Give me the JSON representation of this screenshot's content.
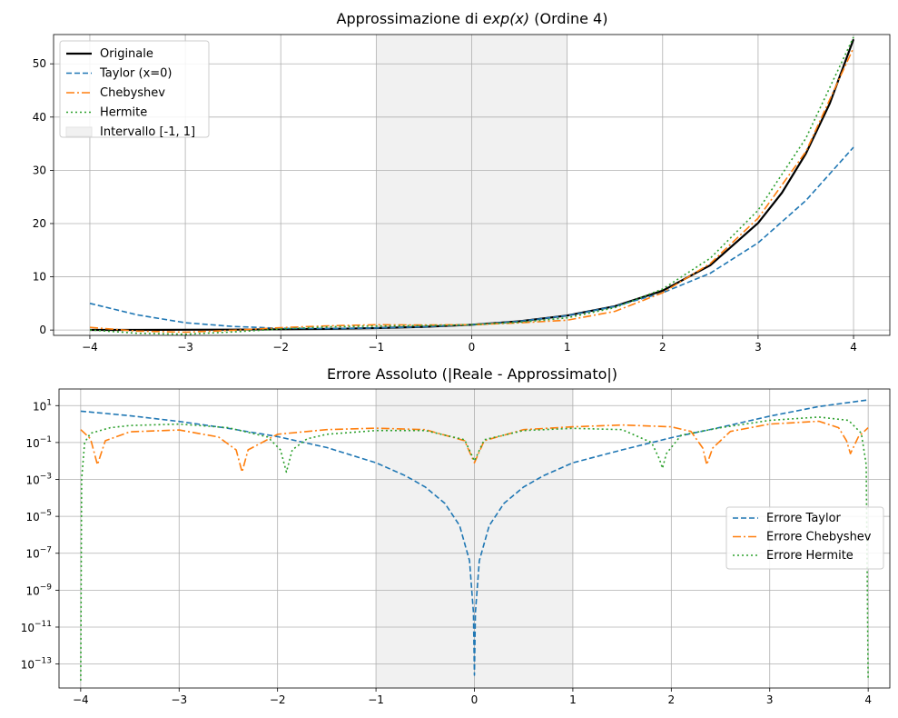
{
  "chart_data": [
    {
      "type": "line",
      "title_prefix": "Approssimazione di ",
      "title_math": "exp(x)",
      "title_suffix": " (Ordine 4)",
      "xlim": [
        -4.38,
        4.38
      ],
      "ylim": [
        -1.0,
        55.5
      ],
      "xticks": [
        -4,
        -3,
        -2,
        -1,
        0,
        1,
        2,
        3,
        4
      ],
      "xtick_labels": [
        "−4",
        "−3",
        "−2",
        "−1",
        "0",
        "1",
        "2",
        "3",
        "4"
      ],
      "yticks": [
        0,
        10,
        20,
        30,
        40,
        50
      ],
      "ytick_labels": [
        "0",
        "10",
        "20",
        "30",
        "40",
        "50"
      ],
      "grid": true,
      "legend_position": "upper-left",
      "shaded_interval": [
        -1,
        1
      ],
      "series": [
        {
          "name": "Originale",
          "color": "#000000",
          "style": "solid",
          "x": [
            -4,
            -3.5,
            -3,
            -2.5,
            -2,
            -1.5,
            -1,
            -0.5,
            0,
            0.5,
            1,
            1.5,
            2,
            2.5,
            3,
            3.25,
            3.5,
            3.75,
            4
          ],
          "values": [
            0.02,
            0.03,
            0.05,
            0.08,
            0.14,
            0.22,
            0.37,
            0.61,
            1.0,
            1.65,
            2.72,
            4.48,
            7.39,
            12.18,
            20.09,
            25.79,
            33.12,
            42.52,
            54.6
          ]
        },
        {
          "name": "Taylor (x=0)",
          "color": "#1f77b4",
          "style": "dashed",
          "x": [
            -4,
            -3.5,
            -3,
            -2.5,
            -2,
            -1.5,
            -1,
            -0.5,
            0,
            0.5,
            1,
            1.5,
            2,
            2.5,
            3,
            3.5,
            4
          ],
          "values": [
            5.0,
            2.84,
            1.38,
            0.67,
            0.33,
            0.27,
            0.38,
            0.61,
            1.0,
            1.65,
            2.71,
            4.44,
            7.0,
            10.68,
            16.38,
            24.31,
            34.33
          ]
        },
        {
          "name": "Chebyshev",
          "color": "#ff7f0e",
          "style": "dashdot",
          "x": [
            -4,
            -3.5,
            -3,
            -2.5,
            -2,
            -1.5,
            -1,
            -0.5,
            0,
            0.5,
            1,
            1.5,
            2,
            2.5,
            3,
            3.5,
            4
          ],
          "values": [
            0.5,
            -0.2,
            -0.4,
            -0.05,
            0.45,
            0.8,
            1.0,
            0.95,
            1.0,
            1.35,
            1.85,
            3.5,
            7.0,
            12.5,
            21.0,
            33.5,
            53.0
          ]
        },
        {
          "name": "Hermite",
          "color": "#2ca02c",
          "style": "dotted",
          "x": [
            -4,
            -3.5,
            -3,
            -2.5,
            -2,
            -1.5,
            -1,
            -0.5,
            0,
            0.5,
            1,
            1.5,
            2,
            2.5,
            3,
            3.5,
            4
          ],
          "values": [
            0.02,
            -0.6,
            -0.8,
            -0.35,
            0.2,
            0.6,
            0.75,
            0.85,
            1.0,
            1.45,
            2.3,
            4.2,
            7.7,
            13.5,
            22.5,
            36.0,
            55.0
          ]
        }
      ],
      "interval_label": "Intervallo [-1, 1]"
    },
    {
      "type": "line",
      "title": "Errore Assoluto (|Reale - Approssimato|)",
      "y_scale": "log",
      "xlim": [
        -4.22,
        4.22
      ],
      "ylim_log10": [
        -14.3,
        1.9
      ],
      "xticks": [
        -4,
        -3,
        -2,
        -1,
        0,
        1,
        2,
        3,
        4
      ],
      "xtick_labels": [
        "−4",
        "−3",
        "−2",
        "−1",
        "0",
        "1",
        "2",
        "3",
        "4"
      ],
      "ytick_exponents": [
        1,
        -1,
        -3,
        -5,
        -7,
        -9,
        -11,
        -13
      ],
      "ytick_base": "10",
      "ytick_exps_text": [
        "1",
        "−1",
        "−3",
        "−5",
        "−7",
        "−9",
        "−11",
        "−13"
      ],
      "grid": true,
      "legend_position": "center-right",
      "shaded_interval": [
        -1,
        1
      ],
      "series": [
        {
          "name": "Errore Taylor",
          "color": "#1f77b4",
          "style": "dashed",
          "x": [
            -4,
            -3.5,
            -3,
            -2.5,
            -2,
            -1.5,
            -1,
            -0.7,
            -0.5,
            -0.3,
            -0.15,
            -0.05,
            -0.01,
            0,
            0.01,
            0.05,
            0.15,
            0.3,
            0.5,
            0.7,
            1,
            1.5,
            2,
            2.5,
            3,
            3.5,
            4
          ],
          "log10_values": [
            0.7,
            0.45,
            0.14,
            -0.23,
            -0.68,
            -1.27,
            -2.1,
            -2.8,
            -3.41,
            -4.3,
            -5.5,
            -7.4,
            -10.2,
            -13.6,
            -10.2,
            -7.4,
            -5.5,
            -4.3,
            -3.41,
            -2.8,
            -2.1,
            -1.4,
            -0.74,
            -0.18,
            0.43,
            0.95,
            1.31
          ]
        },
        {
          "name": "Errore Chebyshev",
          "color": "#ff7f0e",
          "style": "dashdot",
          "x": [
            -4,
            -3.9,
            -3.83,
            -3.75,
            -3.5,
            -3,
            -2.6,
            -2.42,
            -2.36,
            -2.3,
            -2.0,
            -1.5,
            -1,
            -0.5,
            -0.1,
            0,
            0.1,
            0.5,
            1,
            1.5,
            2,
            2.2,
            2.32,
            2.36,
            2.42,
            2.6,
            3,
            3.5,
            3.7,
            3.78,
            3.82,
            3.9,
            4
          ],
          "log10_values": [
            -0.3,
            -0.8,
            -2.2,
            -0.9,
            -0.42,
            -0.32,
            -0.7,
            -1.4,
            -2.6,
            -1.4,
            -0.55,
            -0.3,
            -0.22,
            -0.3,
            -0.9,
            -2.1,
            -0.9,
            -0.3,
            -0.15,
            -0.05,
            -0.15,
            -0.4,
            -1.3,
            -2.2,
            -1.3,
            -0.4,
            0.0,
            0.15,
            -0.2,
            -0.9,
            -1.6,
            -0.7,
            -0.2
          ]
        },
        {
          "name": "Errore Hermite",
          "color": "#2ca02c",
          "style": "dotted",
          "x": [
            -4,
            -3.99,
            -3.96,
            -3.9,
            -3.7,
            -3.5,
            -3,
            -2.5,
            -2.1,
            -1.97,
            -1.91,
            -1.85,
            -1.7,
            -1.5,
            -1,
            -0.5,
            -0.1,
            0,
            0.1,
            0.5,
            1,
            1.5,
            1.8,
            1.88,
            1.91,
            1.95,
            2.1,
            2.5,
            3,
            3.5,
            3.8,
            3.93,
            3.98,
            4
          ],
          "log10_values": [
            -13.9,
            -3.0,
            -1.0,
            -0.5,
            -0.2,
            -0.08,
            0.0,
            -0.2,
            -0.7,
            -1.4,
            -2.6,
            -1.4,
            -0.8,
            -0.55,
            -0.35,
            -0.35,
            -0.85,
            -2.0,
            -0.85,
            -0.35,
            -0.23,
            -0.3,
            -1.0,
            -1.9,
            -2.4,
            -1.6,
            -0.6,
            -0.2,
            0.2,
            0.38,
            0.2,
            -0.5,
            -2.2,
            -13.8
          ]
        }
      ]
    }
  ]
}
